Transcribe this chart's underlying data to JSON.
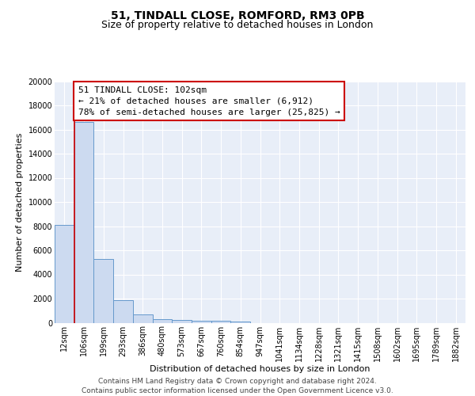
{
  "title1": "51, TINDALL CLOSE, ROMFORD, RM3 0PB",
  "title2": "Size of property relative to detached houses in London",
  "xlabel": "Distribution of detached houses by size in London",
  "ylabel": "Number of detached properties",
  "categories": [
    "12sqm",
    "106sqm",
    "199sqm",
    "293sqm",
    "386sqm",
    "480sqm",
    "573sqm",
    "667sqm",
    "760sqm",
    "854sqm",
    "947sqm",
    "1041sqm",
    "1134sqm",
    "1228sqm",
    "1321sqm",
    "1415sqm",
    "1508sqm",
    "1602sqm",
    "1695sqm",
    "1789sqm",
    "1882sqm"
  ],
  "values": [
    8100,
    16600,
    5300,
    1850,
    700,
    300,
    220,
    190,
    160,
    130,
    0,
    0,
    0,
    0,
    0,
    0,
    0,
    0,
    0,
    0,
    0
  ],
  "bar_color": "#ccdaf0",
  "bar_edge_color": "#6699cc",
  "bg_color": "#e8eef8",
  "grid_color": "#ffffff",
  "annotation_line1": "51 TINDALL CLOSE: 102sqm",
  "annotation_line2": "← 21% of detached houses are smaller (6,912)",
  "annotation_line3": "78% of semi-detached houses are larger (25,825) →",
  "annotation_box_color": "#ffffff",
  "annotation_box_edge_color": "#cc0000",
  "vline_color": "#cc0000",
  "ylim": [
    0,
    20000
  ],
  "yticks": [
    0,
    2000,
    4000,
    6000,
    8000,
    10000,
    12000,
    14000,
    16000,
    18000,
    20000
  ],
  "footer": "Contains HM Land Registry data © Crown copyright and database right 2024.\nContains public sector information licensed under the Open Government Licence v3.0.",
  "title1_fontsize": 10,
  "title2_fontsize": 9,
  "xlabel_fontsize": 8,
  "ylabel_fontsize": 8,
  "annotation_fontsize": 8,
  "footer_fontsize": 6.5,
  "tick_fontsize": 7
}
